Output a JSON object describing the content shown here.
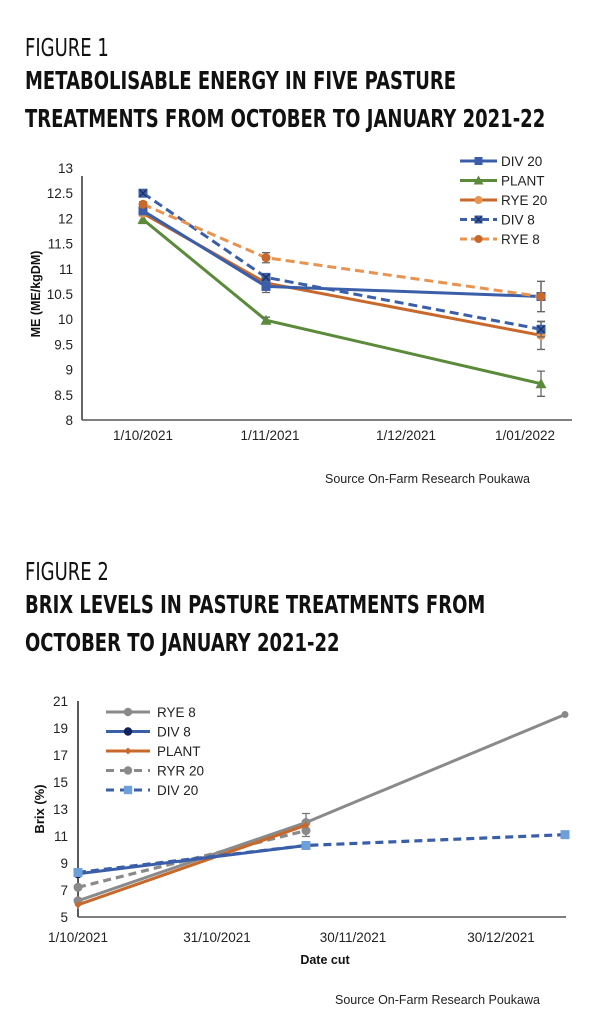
{
  "figures": [
    {
      "label": "FIGURE 1",
      "title_lines": [
        "METABOLISABLE ENERGY IN FIVE PASTURE",
        "TREATMENTS FROM OCTOBER TO JANUARY 2021-22"
      ],
      "source": "Source On-Farm Research Poukawa"
    },
    {
      "label": "FIGURE 2",
      "title_lines": [
        "BRIX LEVELS IN PASTURE TREATMENTS FROM",
        "OCTOBER TO JANUARY 2021-22"
      ],
      "source": "Source On-Farm Research Poukawa"
    }
  ],
  "chart_data": [
    {
      "type": "line",
      "title": "Metabolisable energy in five pasture treatments from October to January 2021-22",
      "xlabel": "",
      "ylabel": "ME (ME/kgDM)",
      "ylim": [
        8,
        13
      ],
      "yticks": [
        "8",
        "8.5",
        "9",
        "9.5",
        "10",
        "10.5",
        "11",
        "11.5",
        "12",
        "12.5",
        "13"
      ],
      "xticks": [
        "1/10/2021",
        "1/11/2021",
        "1/12/2021",
        "1/01/2022"
      ],
      "x": [
        "1/10/2021",
        "1/11/2021",
        "1/01/2022"
      ],
      "legend_position": "top-right",
      "grid": false,
      "series": [
        {
          "name": "DIV 20",
          "color": "#3a5ea8",
          "dash": false,
          "marker": "square",
          "values": [
            12.15,
            10.65,
            10.45
          ],
          "err": [
            0.05,
            0.12,
            0.3
          ]
        },
        {
          "name": "PLANT",
          "color": "#5b8a3a",
          "dash": false,
          "marker": "triangle",
          "values": [
            11.98,
            9.98,
            8.72
          ],
          "err": [
            0.08,
            0.06,
            0.25
          ]
        },
        {
          "name": "RYE 20",
          "color": "#c8682b",
          "dash": false,
          "marker": "circle-light",
          "values": [
            12.1,
            10.72,
            9.68
          ],
          "err": [
            0.05,
            0.08,
            0.28
          ]
        },
        {
          "name": "DIV 8",
          "color": "#3a5ea8",
          "dash": true,
          "marker": "x-square",
          "values": [
            12.5,
            10.83,
            9.8
          ],
          "err": [
            0.05,
            0.06,
            0.15
          ]
        },
        {
          "name": "RYE 8",
          "color": "#e8934f",
          "dash": true,
          "marker": "circle-dark",
          "values": [
            12.28,
            11.22,
            10.45
          ],
          "err": [
            0.05,
            0.1,
            0.3
          ]
        }
      ]
    },
    {
      "type": "line",
      "title": "Brix levels in pasture treatments from October to January 2021-22",
      "xlabel": "Date cut",
      "ylabel": "Brix (%)",
      "ylim": [
        5,
        21
      ],
      "yticks": [
        "5",
        "7",
        "9",
        "11",
        "13",
        "15",
        "17",
        "19",
        "21"
      ],
      "xticks": [
        "1/10/2021",
        "31/10/2021",
        "30/11/2021",
        "30/12/2021"
      ],
      "x": [
        "1/10/2021",
        "20/11/2021",
        "13/01/2022"
      ],
      "legend_position": "top-left",
      "grid": false,
      "series": [
        {
          "name": "RYE 8",
          "color": "#8a8a8a",
          "dash": false,
          "marker": "circle",
          "values": [
            6.2,
            12.0,
            20.0
          ]
        },
        {
          "name": "DIV 8",
          "color": "#3a5ea8",
          "dash": false,
          "marker": "circle-navy",
          "values": [
            8.2,
            10.3,
            null
          ]
        },
        {
          "name": "PLANT",
          "color": "#c8682b",
          "dash": false,
          "marker": "diamond",
          "values": [
            5.9,
            11.8,
            null
          ]
        },
        {
          "name": "RYR 20",
          "color": "#8a8a8a",
          "dash": true,
          "marker": "circle",
          "values": [
            7.2,
            11.4,
            null
          ]
        },
        {
          "name": "DIV 20",
          "color": "#3a5ea8",
          "dash": true,
          "marker": "square-light",
          "values": [
            8.3,
            10.3,
            11.1
          ]
        }
      ]
    }
  ]
}
